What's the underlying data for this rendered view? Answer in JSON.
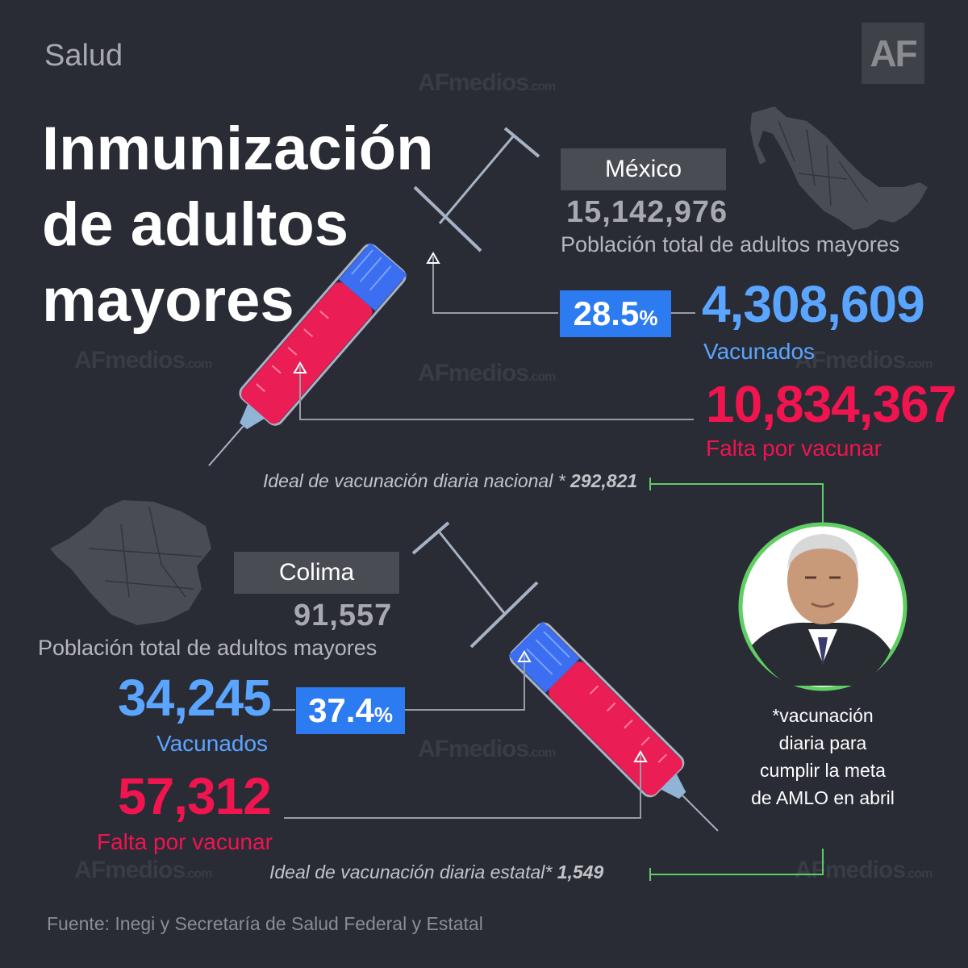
{
  "header": {
    "section": "Salud",
    "logo": "AF",
    "title_lines": [
      "Inmunización",
      "de adultos",
      "mayores"
    ]
  },
  "watermark": {
    "brand": "AF",
    "text": "medios",
    "suffix": ".com"
  },
  "mexico": {
    "name": "México",
    "population": "15,142,976",
    "population_label": "Población total de adultos mayores",
    "percent": "28.5",
    "percent_symbol": "%",
    "percent_value": 28.5,
    "vaccinated": "4,308,609",
    "vaccinated_label": "Vacunados",
    "pending": "10,834,367",
    "pending_label": "Falta por vacunar",
    "ideal_label": "Ideal de vacunación diaria nacional *",
    "ideal_value": "292,821"
  },
  "colima": {
    "name": "Colima",
    "population": "91,557",
    "population_label": "Población total de adultos mayores",
    "percent": "37.4",
    "percent_symbol": "%",
    "percent_value": 37.4,
    "vaccinated": "34,245",
    "vaccinated_label": "Vacunados",
    "pending": "57,312",
    "pending_label": "Falta por vacunar",
    "ideal_label": "Ideal de vacunación diaria estatal*",
    "ideal_value": "1,549"
  },
  "note": "*vacunación diaria para cumplir la meta de AMLO en abril",
  "source": "Fuente: Inegi y Secretaría de Salud Federal y Estatal",
  "colors": {
    "background": "#292b35",
    "vaccinated": "#3b6ef0",
    "pending": "#ea1e55",
    "percent_box": "#2d7bf0",
    "connector_green": "#5fcf63",
    "map": "#4a4c54"
  }
}
